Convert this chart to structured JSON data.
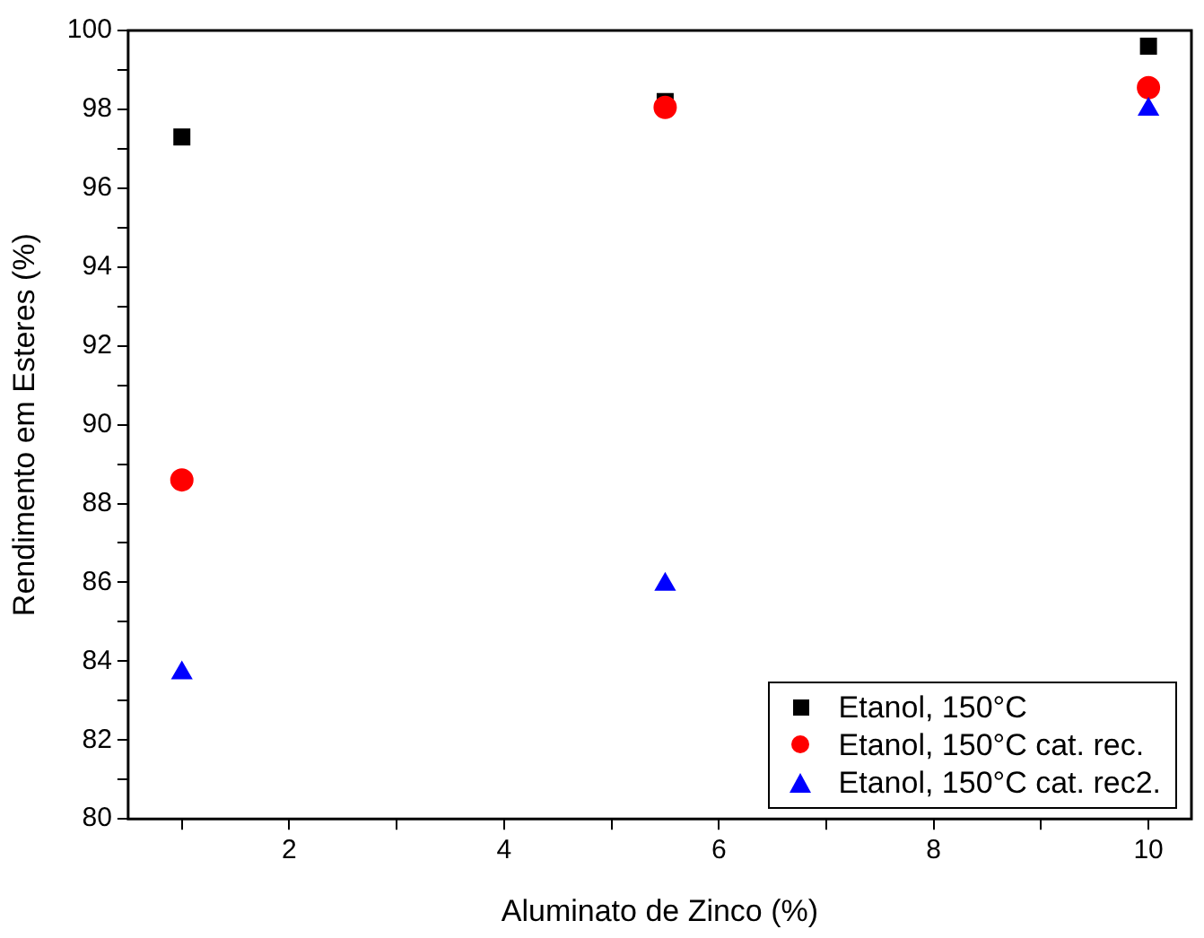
{
  "chart_data": {
    "type": "scatter",
    "xlabel": "Aluminato de Zinco (%)",
    "ylabel": "Rendimento em Esteres (%)",
    "x": [
      1,
      5.5,
      10
    ],
    "series": [
      {
        "name": "Etanol, 150°C",
        "color": "#000000",
        "marker": "square",
        "values": [
          97.3,
          98.2,
          99.6
        ]
      },
      {
        "name": "Etanol, 150°C cat. rec.",
        "color": "#ff0000",
        "marker": "circle",
        "values": [
          88.6,
          98.05,
          98.55
        ]
      },
      {
        "name": "Etanol, 150°C cat. rec2.",
        "color": "#0000ff",
        "marker": "triangle",
        "values": [
          83.7,
          85.95,
          98.0
        ]
      }
    ],
    "xlim": [
      0.5,
      10.4
    ],
    "xticks": [
      {
        "value": 1,
        "label": null
      },
      2,
      {
        "value": 3,
        "label": null
      },
      4,
      {
        "value": 5,
        "label": null
      },
      6,
      {
        "value": 7,
        "label": null
      },
      8,
      {
        "value": 9,
        "label": null
      },
      10
    ],
    "ylim": [
      80,
      100
    ],
    "yticks": [
      80,
      {
        "value": 81,
        "label": null
      },
      82,
      {
        "value": 83,
        "label": null
      },
      84,
      {
        "value": 85,
        "label": null
      },
      86,
      {
        "value": 87,
        "label": null
      },
      88,
      {
        "value": 89,
        "label": null
      },
      90,
      {
        "value": 91,
        "label": null
      },
      92,
      {
        "value": 93,
        "label": null
      },
      94,
      {
        "value": 95,
        "label": null
      },
      96,
      {
        "value": 97,
        "label": null
      },
      98,
      {
        "value": 99,
        "label": null
      },
      100
    ],
    "grid": false,
    "legend": "bottom right"
  }
}
